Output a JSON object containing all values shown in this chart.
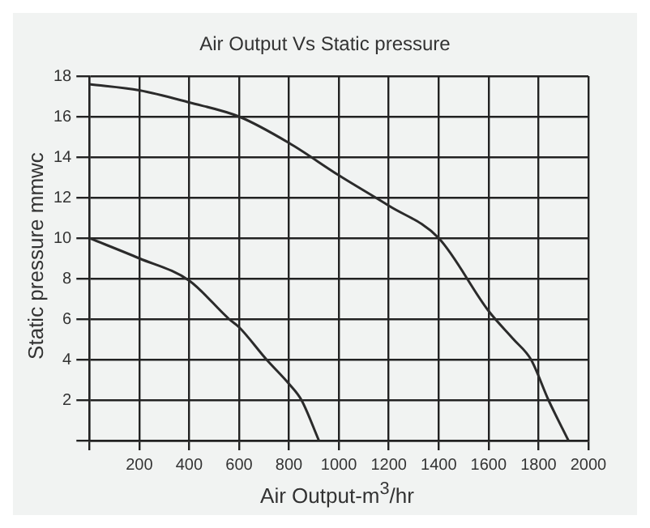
{
  "chart_data": {
    "type": "line",
    "title": "Air Output Vs Static pressure",
    "xlabel": "Air Output-m$^{3}$/hr",
    "ylabel": "Static pressure mmwc",
    "series": [
      {
        "color": "#2b2b2b",
        "x": [
          0,
          200,
          400,
          600,
          800,
          1000,
          1200,
          1400,
          1600,
          1700,
          1770,
          1840,
          1920
        ],
        "values": [
          17.6,
          17.3,
          16.7,
          16,
          14.7,
          13.1,
          11.6,
          10,
          6.4,
          5,
          4,
          2,
          0
        ]
      },
      {
        "color": "#2b2b2b",
        "x": [
          0,
          200,
          400,
          560,
          600,
          710,
          800,
          850,
          920
        ],
        "values": [
          10,
          9,
          7.9,
          6,
          5.6,
          4,
          2.8,
          2,
          0
        ]
      }
    ],
    "xlim": [
      0,
      2000
    ],
    "xticks": [
      {
        "value": 0,
        "label": null
      },
      200,
      400,
      600,
      800,
      1000,
      1200,
      1400,
      1600,
      1800,
      2000
    ],
    "ylim": [
      0,
      18
    ],
    "yticks": [
      {
        "value": 0,
        "label": null
      },
      2,
      4,
      6,
      8,
      10,
      12,
      14,
      16,
      18
    ],
    "grid": true,
    "legend": false,
    "marker": "none",
    "line_style": "solid"
  }
}
